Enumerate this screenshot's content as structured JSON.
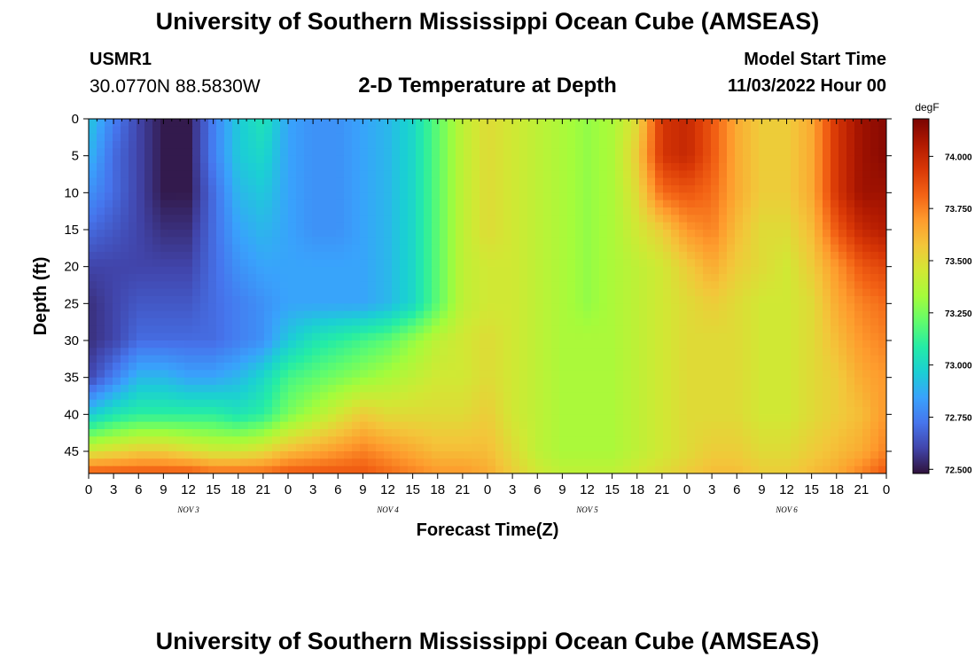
{
  "header": {
    "title": "University of Southern Mississippi Ocean Cube (AMSEAS)",
    "station_id": "USMR1",
    "station_coords": "30.0770N  88.5830W",
    "subtitle": "2-D Temperature at Depth",
    "model_start_label": "Model Start Time",
    "model_start_value": "11/03/2022 Hour 00"
  },
  "footer": {
    "title": "University of Southern Mississippi Ocean Cube (AMSEAS)"
  },
  "colors": {
    "background": "#ffffff",
    "axis": "#000000",
    "colormap": [
      "#30123b",
      "#4145ab",
      "#4675ed",
      "#39a2fc",
      "#1bcfd4",
      "#24eca6",
      "#61fc6c",
      "#a4fc3b",
      "#d1e834",
      "#f3c63a",
      "#fe9b2d",
      "#f36315",
      "#d93806",
      "#b11901",
      "#7a0402"
    ]
  },
  "chart_data": {
    "type": "heatmap",
    "title": "2-D Temperature at Depth",
    "xlabel": "Forecast Time(Z)",
    "ylabel": "Depth (ft)",
    "x_unit": "hours since model start",
    "xlim": [
      0,
      96
    ],
    "ylim": [
      0,
      48
    ],
    "y_inverted": true,
    "x_ticks": [
      0,
      3,
      6,
      9,
      12,
      15,
      18,
      21,
      24,
      27,
      30,
      33,
      36,
      39,
      42,
      45,
      48,
      51,
      54,
      57,
      60,
      63,
      66,
      69,
      72,
      75,
      78,
      81,
      84,
      87,
      90,
      93,
      96
    ],
    "x_tick_labels": [
      "0",
      "3",
      "6",
      "9",
      "12",
      "15",
      "18",
      "21",
      "0",
      "3",
      "6",
      "9",
      "12",
      "15",
      "18",
      "21",
      "0",
      "3",
      "6",
      "9",
      "12",
      "15",
      "18",
      "21",
      "0",
      "3",
      "6",
      "9",
      "12",
      "15",
      "18",
      "21",
      "0"
    ],
    "day_labels": [
      {
        "x": 12,
        "label": "NOV 3"
      },
      {
        "x": 36,
        "label": "NOV 4"
      },
      {
        "x": 60,
        "label": "NOV 5"
      },
      {
        "x": 84,
        "label": "NOV 6"
      }
    ],
    "y_ticks": [
      0,
      5,
      10,
      15,
      20,
      25,
      30,
      35,
      40,
      45
    ],
    "y_tick_labels": [
      "0",
      "5",
      "10",
      "15",
      "20",
      "25",
      "30",
      "35",
      "40",
      "45"
    ],
    "colorbar": {
      "unit": "degF",
      "min": 72.48,
      "max": 74.18,
      "ticks": [
        72.5,
        72.75,
        73.0,
        73.25,
        73.5,
        73.75,
        74.0
      ],
      "tick_labels": [
        "72.500",
        "72.750",
        "73.000",
        "73.250",
        "73.500",
        "73.750",
        "74.000"
      ]
    },
    "depths": [
      0,
      5,
      10,
      15,
      20,
      25,
      30,
      35,
      40,
      45,
      48
    ],
    "times": [
      0,
      3,
      6,
      9,
      12,
      15,
      18,
      21,
      24,
      27,
      30,
      33,
      36,
      39,
      42,
      45,
      48,
      51,
      54,
      57,
      60,
      63,
      66,
      69,
      72,
      75,
      78,
      81,
      84,
      87,
      90,
      93,
      96
    ],
    "values": [
      [
        72.95,
        72.75,
        72.6,
        72.5,
        72.5,
        72.75,
        72.95,
        73.05,
        72.85,
        72.8,
        72.8,
        72.85,
        72.9,
        73.0,
        73.2,
        73.4,
        73.5,
        73.45,
        73.4,
        73.35,
        73.3,
        73.35,
        73.5,
        73.95,
        74.0,
        73.85,
        73.65,
        73.55,
        73.55,
        73.65,
        73.95,
        74.1,
        74.15
      ],
      [
        72.9,
        72.7,
        72.6,
        72.5,
        72.5,
        72.75,
        72.95,
        73.0,
        72.85,
        72.8,
        72.8,
        72.85,
        72.9,
        73.0,
        73.2,
        73.4,
        73.5,
        73.45,
        73.4,
        73.35,
        73.3,
        73.35,
        73.55,
        73.95,
        74.0,
        73.85,
        73.65,
        73.55,
        73.55,
        73.65,
        73.95,
        74.1,
        74.15
      ],
      [
        72.8,
        72.7,
        72.6,
        72.5,
        72.5,
        72.7,
        72.9,
        72.95,
        72.85,
        72.8,
        72.8,
        72.85,
        72.9,
        73.0,
        73.2,
        73.4,
        73.5,
        73.45,
        73.4,
        73.35,
        73.3,
        73.35,
        73.5,
        73.8,
        73.85,
        73.8,
        73.65,
        73.55,
        73.55,
        73.65,
        73.95,
        74.1,
        74.1
      ],
      [
        72.7,
        72.65,
        72.6,
        72.55,
        72.55,
        72.7,
        72.85,
        72.9,
        72.85,
        72.8,
        72.8,
        72.85,
        72.9,
        73.0,
        73.2,
        73.4,
        73.5,
        73.45,
        73.4,
        73.35,
        73.3,
        73.35,
        73.45,
        73.55,
        73.7,
        73.75,
        73.6,
        73.5,
        73.5,
        73.6,
        73.85,
        74.0,
        74.05
      ],
      [
        72.6,
        72.6,
        72.6,
        72.6,
        72.6,
        72.7,
        72.8,
        72.85,
        72.85,
        72.85,
        72.85,
        72.85,
        72.9,
        73.0,
        73.2,
        73.4,
        73.45,
        73.45,
        73.4,
        73.35,
        73.3,
        73.35,
        73.4,
        73.45,
        73.55,
        73.65,
        73.55,
        73.5,
        73.45,
        73.55,
        73.7,
        73.85,
        73.9
      ],
      [
        72.55,
        72.6,
        72.65,
        72.65,
        72.65,
        72.7,
        72.75,
        72.8,
        72.85,
        72.85,
        72.85,
        72.85,
        72.9,
        73.0,
        73.2,
        73.4,
        73.45,
        73.45,
        73.4,
        73.35,
        73.3,
        73.35,
        73.4,
        73.45,
        73.5,
        73.55,
        73.5,
        73.45,
        73.45,
        73.5,
        73.65,
        73.75,
        73.8
      ],
      [
        72.55,
        72.6,
        72.7,
        72.7,
        72.7,
        72.7,
        72.75,
        72.8,
        72.95,
        73.05,
        73.1,
        73.15,
        73.2,
        73.3,
        73.4,
        73.45,
        73.5,
        73.45,
        73.4,
        73.35,
        73.35,
        73.35,
        73.4,
        73.45,
        73.5,
        73.5,
        73.5,
        73.45,
        73.45,
        73.5,
        73.6,
        73.7,
        73.75
      ],
      [
        72.6,
        72.75,
        72.9,
        72.9,
        72.85,
        72.85,
        72.9,
        73.0,
        73.15,
        73.2,
        73.25,
        73.3,
        73.35,
        73.4,
        73.45,
        73.45,
        73.5,
        73.45,
        73.4,
        73.35,
        73.35,
        73.35,
        73.4,
        73.45,
        73.5,
        73.5,
        73.5,
        73.45,
        73.45,
        73.5,
        73.55,
        73.65,
        73.7
      ],
      [
        72.95,
        73.05,
        73.1,
        73.1,
        73.1,
        73.1,
        73.05,
        73.1,
        73.25,
        73.35,
        73.45,
        73.55,
        73.5,
        73.5,
        73.5,
        73.5,
        73.55,
        73.45,
        73.4,
        73.35,
        73.35,
        73.35,
        73.4,
        73.45,
        73.5,
        73.5,
        73.5,
        73.45,
        73.45,
        73.5,
        73.55,
        73.6,
        73.7
      ],
      [
        73.45,
        73.5,
        73.55,
        73.55,
        73.5,
        73.45,
        73.45,
        73.5,
        73.6,
        73.65,
        73.7,
        73.75,
        73.7,
        73.65,
        73.6,
        73.6,
        73.6,
        73.5,
        73.4,
        73.35,
        73.35,
        73.35,
        73.4,
        73.45,
        73.5,
        73.55,
        73.55,
        73.5,
        73.5,
        73.55,
        73.6,
        73.65,
        73.75
      ],
      [
        73.85,
        73.85,
        73.85,
        73.85,
        73.85,
        73.8,
        73.8,
        73.8,
        73.85,
        73.85,
        73.85,
        73.85,
        73.8,
        73.75,
        73.7,
        73.7,
        73.65,
        73.55,
        73.45,
        73.4,
        73.4,
        73.4,
        73.45,
        73.5,
        73.55,
        73.6,
        73.6,
        73.55,
        73.55,
        73.6,
        73.65,
        73.75,
        73.85
      ]
    ]
  }
}
